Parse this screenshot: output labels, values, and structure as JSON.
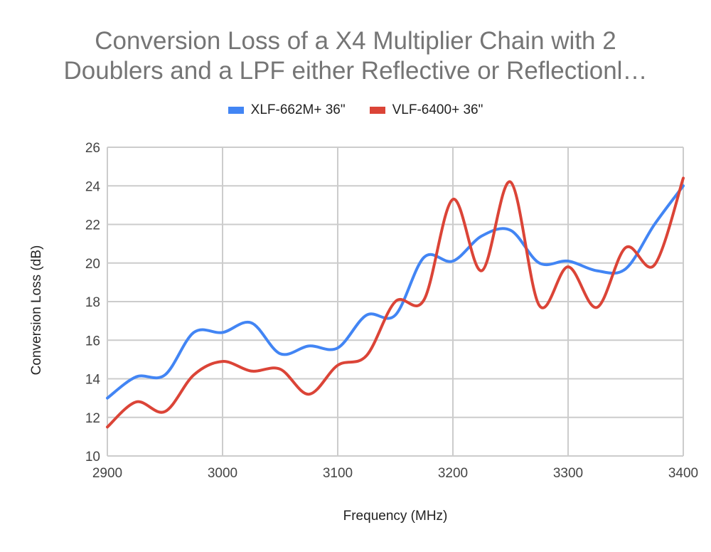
{
  "chart_data": {
    "type": "line",
    "title_lines": [
      "Conversion Loss of a X4 Multiplier Chain with 2",
      "Doublers and a LPF either Reflective or Reflectionl…"
    ],
    "xlabel": "Frequency (MHz)",
    "ylabel": "Conversion Loss (dB)",
    "xlim": [
      2900,
      3400
    ],
    "ylim": [
      10,
      26
    ],
    "xticks": [
      2900,
      3000,
      3100,
      3200,
      3300,
      3400
    ],
    "yticks": [
      10,
      12,
      14,
      16,
      18,
      20,
      22,
      24,
      26
    ],
    "grid": true,
    "legend_position": "top",
    "x": [
      2900,
      2925,
      2950,
      2975,
      3000,
      3025,
      3050,
      3075,
      3100,
      3125,
      3150,
      3175,
      3200,
      3225,
      3250,
      3275,
      3300,
      3325,
      3350,
      3375,
      3400
    ],
    "series": [
      {
        "name": "XLF-662M+ 36\"",
        "color": "#4285f4",
        "values": [
          13.0,
          14.1,
          14.2,
          16.4,
          16.4,
          16.9,
          15.3,
          15.7,
          15.6,
          17.3,
          17.3,
          20.3,
          20.1,
          21.4,
          21.7,
          20.0,
          20.1,
          19.6,
          19.7,
          22.0,
          24.0
        ]
      },
      {
        "name": "VLF-6400+ 36\"",
        "color": "#db4437",
        "values": [
          11.5,
          12.8,
          12.3,
          14.2,
          14.9,
          14.4,
          14.5,
          13.2,
          14.7,
          15.2,
          18.0,
          18.1,
          23.3,
          19.6,
          24.2,
          17.8,
          19.8,
          17.7,
          20.8,
          19.9,
          24.4
        ]
      }
    ]
  }
}
